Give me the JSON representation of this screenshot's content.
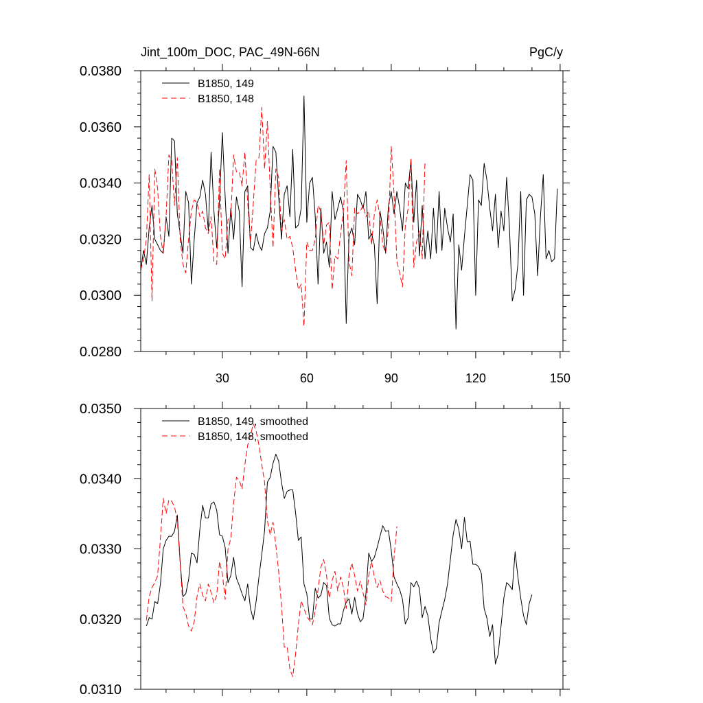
{
  "chart_data": [
    {
      "type": "line",
      "title": "Jint_100m_DOC, PAC_49N-66N",
      "units": "PgC/y",
      "xlim": [
        1,
        151
      ],
      "ylim": [
        0.028,
        0.038
      ],
      "x_ticks": [
        30,
        60,
        90,
        120,
        150
      ],
      "x_tick_labels": [
        "30",
        "60",
        "90",
        "120",
        "150"
      ],
      "y_ticks": [
        0.028,
        0.03,
        0.032,
        0.034,
        0.036,
        0.038
      ],
      "y_tick_labels": [
        "0.0280",
        "0.0300",
        "0.0320",
        "0.0340",
        "0.0360",
        "0.0380"
      ],
      "series": [
        {
          "name": "B1850, 149",
          "color": "#000000",
          "style": "solid",
          "values": [
            0.0309,
            0.0316,
            0.0311,
            0.0324,
            0.0332,
            0.032,
            0.0318,
            0.0316,
            0.0315,
            0.0328,
            0.0321,
            0.0356,
            0.0355,
            0.0329,
            0.0322,
            0.0315,
            0.0337,
            0.0333,
            0.0304,
            0.032,
            0.0333,
            0.0335,
            0.0341,
            0.0336,
            0.0323,
            0.0351,
            0.033,
            0.0317,
            0.0334,
            0.0358,
            0.0335,
            0.0315,
            0.0331,
            0.032,
            0.0335,
            0.033,
            0.0303,
            0.0337,
            0.0339,
            0.0317,
            0.0316,
            0.0322,
            0.0318,
            0.0316,
            0.0322,
            0.0324,
            0.033,
            0.0353,
            0.0351,
            0.0335,
            0.032,
            0.0336,
            0.0339,
            0.0328,
            0.0352,
            0.0324,
            0.0325,
            0.0331,
            0.0371,
            0.0326,
            0.034,
            0.0342,
            0.0328,
            0.0304,
            0.0331,
            0.0315,
            0.0319,
            0.031,
            0.0337,
            0.0327,
            0.0331,
            0.0335,
            0.033,
            0.029,
            0.0321,
            0.0324,
            0.0318,
            0.0336,
            0.0334,
            0.0331,
            0.0337,
            0.032,
            0.0322,
            0.0318,
            0.0297,
            0.033,
            0.0324,
            0.0315,
            0.0332,
            0.0337,
            0.0329,
            0.0337,
            0.0331,
            0.0323,
            0.034,
            0.0338,
            0.0348,
            0.0326,
            0.0341,
            0.0314,
            0.0332,
            0.0313,
            0.0323,
            0.0313,
            0.0331,
            0.0315,
            0.0337,
            0.0316,
            0.0331,
            0.0324,
            0.0319,
            0.0329,
            0.0288,
            0.0318,
            0.0309,
            0.0321,
            0.0332,
            0.0343,
            0.0341,
            0.03,
            0.0334,
            0.0332,
            0.0347,
            0.0341,
            0.0331,
            0.0323,
            0.0336,
            0.0317,
            0.033,
            0.0323,
            0.0342,
            0.0324,
            0.0298,
            0.0302,
            0.0311,
            0.0337,
            0.03,
            0.0334,
            0.0336,
            0.0335,
            0.0329,
            0.0307,
            0.0328,
            0.0343,
            0.0313,
            0.0316,
            0.0312,
            0.0313,
            0.0338
          ]
        },
        {
          "name": "B1850, 148",
          "color": "#ff0000",
          "style": "dashed",
          "values": [
            0.0309,
            0.0313,
            0.032,
            0.0343,
            0.0298,
            0.0345,
            0.0338,
            0.0321,
            0.0315,
            0.0328,
            0.035,
            0.0348,
            0.0332,
            0.0349,
            0.032,
            0.0311,
            0.0308,
            0.032,
            0.033,
            0.0334,
            0.0333,
            0.0328,
            0.033,
            0.0324,
            0.0322,
            0.0328,
            0.0312,
            0.0311,
            0.0345,
            0.0315,
            0.0313,
            0.0327,
            0.0328,
            0.035,
            0.0344,
            0.0344,
            0.0339,
            0.0351,
            0.0333,
            0.0319,
            0.0333,
            0.0348,
            0.0349,
            0.0367,
            0.0345,
            0.0362,
            0.0338,
            0.0317,
            0.0345,
            0.0342,
            0.0323,
            0.0327,
            0.032,
            0.0321,
            0.0317,
            0.0309,
            0.0302,
            0.0304,
            0.0289,
            0.0319,
            0.0316,
            0.0316,
            0.032,
            0.0332,
            0.033,
            0.0318,
            0.0325,
            0.0326,
            0.0302,
            0.0314,
            0.0313,
            0.0322,
            0.033,
            0.0348,
            0.0312,
            0.0307,
            0.0331,
            0.0329,
            0.033,
            0.0332,
            0.0328,
            0.033,
            0.0318,
            0.0329,
            0.0334,
            0.0328,
            0.0318,
            0.0315,
            0.0324,
            0.0353,
            0.0336,
            0.0312,
            0.0308,
            0.0303,
            0.0325,
            0.0331,
            0.0349,
            0.031,
            0.0319,
            0.0323,
            0.0313,
            0.0348
          ]
        }
      ]
    },
    {
      "type": "line",
      "title": "",
      "xlim": [
        1,
        151
      ],
      "ylim": [
        0.031,
        0.035
      ],
      "x_ticks": [
        30,
        60,
        90,
        120,
        150
      ],
      "y_ticks": [
        0.031,
        0.032,
        0.033,
        0.034,
        0.035
      ],
      "y_tick_labels": [
        "0.0310",
        "0.0320",
        "0.0330",
        "0.0340",
        "0.0350"
      ],
      "series": [
        {
          "name": "B1850, 149, smoothed",
          "color": "#000000",
          "style": "solid",
          "values": [
            0.0319,
            0.03202,
            0.032,
            0.03225,
            0.03222,
            0.0325,
            0.033,
            0.03312,
            0.03318,
            0.03318,
            0.03325,
            0.03348,
            0.03282,
            0.03232,
            0.03236,
            0.03256,
            0.03294,
            0.03292,
            0.0328,
            0.03328,
            0.03362,
            0.03344,
            0.03344,
            0.03364,
            0.03367,
            0.03355,
            0.0332,
            0.03318,
            0.03302,
            0.03252,
            0.03262,
            0.03288,
            0.03258,
            0.03248,
            0.03236,
            0.03226,
            0.0325,
            0.03215,
            0.03199,
            0.03225,
            0.0326,
            0.03292,
            0.03326,
            0.03395,
            0.03402,
            0.03422,
            0.03435,
            0.03425,
            0.03395,
            0.03372,
            0.03382,
            0.03384,
            0.03384,
            0.03352,
            0.03312,
            0.03317,
            0.0325,
            0.03236,
            0.032,
            0.032,
            0.03244,
            0.0323,
            0.03234,
            0.03252,
            0.03248,
            0.03201,
            0.03192,
            0.0319,
            0.03193,
            0.03193,
            0.03212,
            0.03224,
            0.03229,
            0.03207,
            0.03231,
            0.03208,
            0.03196,
            0.03201,
            0.03236,
            0.03294,
            0.03282,
            0.03288,
            0.03302,
            0.03318,
            0.03333,
            0.03325,
            0.03326,
            0.03298,
            0.0326,
            0.0325,
            0.03242,
            0.03228,
            0.03193,
            0.03202,
            0.03252,
            0.03246,
            0.03254,
            0.03244,
            0.03202,
            0.03218,
            0.03205,
            0.03173,
            0.03152,
            0.03158,
            0.03195,
            0.03212,
            0.03228,
            0.0325,
            0.03285,
            0.0332,
            0.03342,
            0.03328,
            0.033,
            0.03345,
            0.0331,
            0.03311,
            0.03278,
            0.03278,
            0.03275,
            0.03265,
            0.03215,
            0.03201,
            0.03175,
            0.03192,
            0.03136,
            0.0315,
            0.0319,
            0.0323,
            0.03252,
            0.03248,
            0.03242,
            0.03296,
            0.0326,
            0.0323,
            0.03205,
            0.03192,
            0.03222,
            0.03235
          ]
        },
        {
          "name": "B1850, 148, smoothed",
          "color": "#ff0000",
          "style": "dashed",
          "values": [
            0.03198,
            0.03232,
            0.03245,
            0.03252,
            0.03262,
            0.03315,
            0.03372,
            0.0335,
            0.0337,
            0.03368,
            0.0336,
            0.0334,
            0.0328,
            0.03218,
            0.03208,
            0.0319,
            0.03183,
            0.03196,
            0.03232,
            0.0325,
            0.03234,
            0.03226,
            0.0325,
            0.03238,
            0.03223,
            0.03234,
            0.03282,
            0.03264,
            0.03228,
            0.033,
            0.03315,
            0.03365,
            0.03402,
            0.03398,
            0.03385,
            0.0342,
            0.03448,
            0.03462,
            0.03478,
            0.03468,
            0.03448,
            0.0342,
            0.03395,
            0.0334,
            0.0332,
            0.03338,
            0.03305,
            0.03268,
            0.0322,
            0.0316,
            0.03161,
            0.03128,
            0.03118,
            0.0315,
            0.03192,
            0.03226,
            0.03215,
            0.03204,
            0.03198,
            0.03192,
            0.03212,
            0.03242,
            0.03274,
            0.03285,
            0.03262,
            0.0323,
            0.03255,
            0.03268,
            0.0324,
            0.0326,
            0.03245,
            0.03215,
            0.03262,
            0.0328,
            0.03262,
            0.0324,
            0.03254,
            0.03237,
            0.0322,
            0.03262,
            0.03282,
            0.0326,
            0.03245,
            0.03255,
            0.0324,
            0.03232,
            0.0323,
            0.03225,
            0.03288,
            0.03332
          ]
        }
      ]
    }
  ]
}
